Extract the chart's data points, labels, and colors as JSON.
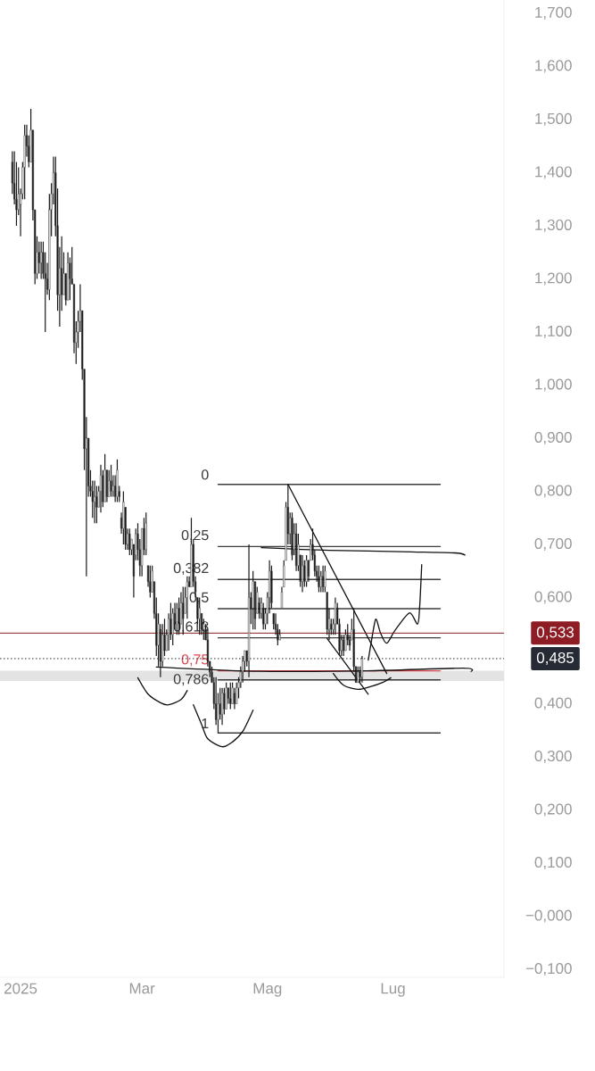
{
  "chart_data": {
    "type": "candlestick",
    "xlim": [
      "2024-12-22",
      "2025-08-24"
    ],
    "ylim": [
      -0.115,
      1.725
    ],
    "xticks": [
      {
        "value": "2025-01-01",
        "label": "2025"
      },
      {
        "value": "2025-03-01",
        "label": "Mar"
      },
      {
        "value": "2025-05-01",
        "label": "Mag"
      },
      {
        "value": "2025-07-01",
        "label": "Lug"
      }
    ],
    "yticks": [
      {
        "value": -0.1,
        "label": "−0,100"
      },
      {
        "value": 0,
        "label": "−0,000"
      },
      {
        "value": 0.1,
        "label": "0,100"
      },
      {
        "value": 0.2,
        "label": "0,200"
      },
      {
        "value": 0.3,
        "label": "0,300"
      },
      {
        "value": 0.4,
        "label": "0,400"
      },
      {
        "value": 0.6,
        "label": "0,600"
      },
      {
        "value": 0.7,
        "label": "0,700"
      },
      {
        "value": 0.8,
        "label": "0,800"
      },
      {
        "value": 0.9,
        "label": "0,900"
      },
      {
        "value": 1.0,
        "label": "1,000"
      },
      {
        "value": 1.1,
        "label": "1,100"
      },
      {
        "value": 1.2,
        "label": "1,200"
      },
      {
        "value": 1.3,
        "label": "1,300"
      },
      {
        "value": 1.4,
        "label": "1,400"
      },
      {
        "value": 1.5,
        "label": "1,500"
      },
      {
        "value": 1.6,
        "label": "1,600"
      },
      {
        "value": 1.7,
        "label": "1,700"
      }
    ],
    "bands": [
      {
        "axis": "y",
        "from": 0.443,
        "to": 0.462,
        "color": "#e3e3e3"
      }
    ],
    "ref_lines": [
      {
        "axis": "y",
        "value": 0.533,
        "label": "0,533",
        "color": "#8e1c24"
      },
      {
        "axis": "y",
        "value": 0.485,
        "label": "0,485",
        "color": "#262a35",
        "line_style": "dotted"
      }
    ],
    "color": "#1a1a1a",
    "x": [
      "2024-12-28",
      "2024-12-29",
      "2024-12-30",
      "2024-12-31",
      "2025-01-01",
      "2025-01-02",
      "2025-01-03",
      "2025-01-04",
      "2025-01-05",
      "2025-01-06",
      "2025-01-07",
      "2025-01-08",
      "2025-01-09",
      "2025-01-10",
      "2025-01-11",
      "2025-01-12",
      "2025-01-13",
      "2025-01-14",
      "2025-01-15",
      "2025-01-16",
      "2025-01-17",
      "2025-01-18",
      "2025-01-19",
      "2025-01-20",
      "2025-01-21",
      "2025-01-22",
      "2025-01-23",
      "2025-01-24",
      "2025-01-25",
      "2025-01-26",
      "2025-01-27",
      "2025-01-28",
      "2025-01-29",
      "2025-01-30",
      "2025-01-31",
      "2025-02-01",
      "2025-02-02",
      "2025-02-03",
      "2025-02-04",
      "2025-02-05",
      "2025-02-06",
      "2025-02-07",
      "2025-02-08",
      "2025-02-09",
      "2025-02-10",
      "2025-02-11",
      "2025-02-12",
      "2025-02-13",
      "2025-02-14",
      "2025-02-15",
      "2025-02-16",
      "2025-02-17",
      "2025-02-18",
      "2025-02-19",
      "2025-02-20",
      "2025-02-21",
      "2025-02-22",
      "2025-02-23",
      "2025-02-24",
      "2025-02-25",
      "2025-02-26",
      "2025-02-27",
      "2025-02-28",
      "2025-03-01",
      "2025-03-02",
      "2025-03-03",
      "2025-03-04",
      "2025-03-05",
      "2025-03-06",
      "2025-03-07",
      "2025-03-08",
      "2025-03-09",
      "2025-03-10",
      "2025-03-11",
      "2025-03-12",
      "2025-03-13",
      "2025-03-14",
      "2025-03-15",
      "2025-03-16",
      "2025-03-17",
      "2025-03-18",
      "2025-03-19",
      "2025-03-20",
      "2025-03-21",
      "2025-03-22",
      "2025-03-23",
      "2025-03-24",
      "2025-03-25",
      "2025-03-26",
      "2025-03-27",
      "2025-03-28",
      "2025-03-29",
      "2025-03-30",
      "2025-03-31",
      "2025-04-01",
      "2025-04-02",
      "2025-04-03",
      "2025-04-04",
      "2025-04-05",
      "2025-04-06",
      "2025-04-07",
      "2025-04-08",
      "2025-04-09",
      "2025-04-10",
      "2025-04-11",
      "2025-04-12",
      "2025-04-13",
      "2025-04-14",
      "2025-04-15",
      "2025-04-16",
      "2025-04-17",
      "2025-04-18",
      "2025-04-19",
      "2025-04-20",
      "2025-04-21",
      "2025-04-22",
      "2025-04-23",
      "2025-04-24",
      "2025-04-25",
      "2025-04-26",
      "2025-04-27",
      "2025-04-28",
      "2025-04-29",
      "2025-04-30",
      "2025-05-01",
      "2025-05-02",
      "2025-05-03",
      "2025-05-04",
      "2025-05-05",
      "2025-05-06",
      "2025-05-07",
      "2025-05-08",
      "2025-05-09",
      "2025-05-10",
      "2025-05-11",
      "2025-05-12",
      "2025-05-13",
      "2025-05-14",
      "2025-05-15",
      "2025-05-16",
      "2025-05-17",
      "2025-05-18",
      "2025-05-19",
      "2025-05-20",
      "2025-05-21",
      "2025-05-22",
      "2025-05-23",
      "2025-05-24",
      "2025-05-25",
      "2025-05-26",
      "2025-05-27",
      "2025-05-28",
      "2025-05-29",
      "2025-05-30",
      "2025-05-31",
      "2025-06-01",
      "2025-06-02",
      "2025-06-03",
      "2025-06-04",
      "2025-06-05",
      "2025-06-06",
      "2025-06-07",
      "2025-06-08",
      "2025-06-09",
      "2025-06-10",
      "2025-06-11",
      "2025-06-12",
      "2025-06-13",
      "2025-06-14",
      "2025-06-15",
      "2025-06-16"
    ],
    "ohlc": [
      [
        1.42,
        1.44,
        1.36,
        1.38
      ],
      [
        1.38,
        1.44,
        1.34,
        1.35
      ],
      [
        1.35,
        1.42,
        1.3,
        1.33
      ],
      [
        1.33,
        1.41,
        1.32,
        1.36
      ],
      [
        1.34,
        1.37,
        1.28,
        1.36
      ],
      [
        1.36,
        1.42,
        1.35,
        1.41
      ],
      [
        1.41,
        1.49,
        1.35,
        1.47
      ],
      [
        1.47,
        1.49,
        1.43,
        1.45
      ],
      [
        1.45,
        1.47,
        1.41,
        1.42
      ],
      [
        1.42,
        1.52,
        1.42,
        1.48
      ],
      [
        1.48,
        1.48,
        1.31,
        1.33
      ],
      [
        1.33,
        1.33,
        1.19,
        1.21
      ],
      [
        1.21,
        1.28,
        1.2,
        1.25
      ],
      [
        1.25,
        1.27,
        1.21,
        1.23
      ],
      [
        1.23,
        1.27,
        1.2,
        1.25
      ],
      [
        1.25,
        1.27,
        1.2,
        1.21
      ],
      [
        1.21,
        1.25,
        1.1,
        1.2
      ],
      [
        1.2,
        1.23,
        1.17,
        1.18
      ],
      [
        1.18,
        1.36,
        1.16,
        1.33
      ],
      [
        1.33,
        1.38,
        1.28,
        1.36
      ],
      [
        1.36,
        1.43,
        1.34,
        1.4
      ],
      [
        1.4,
        1.43,
        1.28,
        1.3
      ],
      [
        1.3,
        1.37,
        1.14,
        1.17
      ],
      [
        1.17,
        1.26,
        1.11,
        1.22
      ],
      [
        1.22,
        1.28,
        1.14,
        1.17
      ],
      [
        1.17,
        1.25,
        1.17,
        1.21
      ],
      [
        1.21,
        1.21,
        1.15,
        1.16
      ],
      [
        1.16,
        1.25,
        1.16,
        1.23
      ],
      [
        1.23,
        1.24,
        1.16,
        1.2
      ],
      [
        1.2,
        1.26,
        1.19,
        1.19
      ],
      [
        1.19,
        1.19,
        1.06,
        1.08
      ],
      [
        1.08,
        1.12,
        1.04,
        1.1
      ],
      [
        1.1,
        1.14,
        1.07,
        1.12
      ],
      [
        1.12,
        1.19,
        1.1,
        1.14
      ],
      [
        1.14,
        1.14,
        1.01,
        1.03
      ],
      [
        1.03,
        1.03,
        0.84,
        0.88
      ],
      [
        0.88,
        0.94,
        0.64,
        0.9
      ],
      [
        0.9,
        0.9,
        0.79,
        0.81
      ],
      [
        0.81,
        0.84,
        0.79,
        0.8
      ],
      [
        0.8,
        0.82,
        0.75,
        0.78
      ],
      [
        0.78,
        0.82,
        0.74,
        0.79
      ],
      [
        0.79,
        0.81,
        0.74,
        0.77
      ],
      [
        0.77,
        0.81,
        0.77,
        0.8
      ],
      [
        0.8,
        0.85,
        0.76,
        0.83
      ],
      [
        0.83,
        0.84,
        0.77,
        0.78
      ],
      [
        0.78,
        0.87,
        0.78,
        0.84
      ],
      [
        0.84,
        0.84,
        0.78,
        0.79
      ],
      [
        0.79,
        0.84,
        0.79,
        0.82
      ],
      [
        0.82,
        0.85,
        0.79,
        0.8
      ],
      [
        0.8,
        0.83,
        0.79,
        0.81
      ],
      [
        0.81,
        0.83,
        0.78,
        0.79
      ],
      [
        0.79,
        0.86,
        0.78,
        0.84
      ],
      [
        0.8,
        0.81,
        0.78,
        0.79
      ],
      [
        0.75,
        0.76,
        0.72,
        0.73
      ],
      [
        0.73,
        0.8,
        0.7,
        0.78
      ],
      [
        0.77,
        0.77,
        0.69,
        0.7
      ],
      [
        0.7,
        0.73,
        0.69,
        0.72
      ],
      [
        0.72,
        0.73,
        0.68,
        0.69
      ],
      [
        0.69,
        0.71,
        0.68,
        0.71
      ],
      [
        0.7,
        0.7,
        0.6,
        0.64
      ],
      [
        0.68,
        0.73,
        0.67,
        0.72
      ],
      [
        0.72,
        0.74,
        0.67,
        0.69
      ],
      [
        0.69,
        0.71,
        0.64,
        0.66
      ],
      [
        0.66,
        0.73,
        0.64,
        0.73
      ],
      [
        0.73,
        0.75,
        0.68,
        0.69
      ],
      [
        0.69,
        0.76,
        0.68,
        0.74
      ],
      [
        0.66,
        0.66,
        0.62,
        0.63
      ],
      [
        0.63,
        0.66,
        0.6,
        0.61
      ],
      [
        0.61,
        0.66,
        0.61,
        0.65
      ],
      [
        0.63,
        0.63,
        0.56,
        0.57
      ],
      [
        0.57,
        0.6,
        0.49,
        0.51
      ],
      [
        0.51,
        0.57,
        0.47,
        0.55
      ],
      [
        0.54,
        0.55,
        0.45,
        0.48
      ],
      [
        0.48,
        0.55,
        0.47,
        0.53
      ],
      [
        0.53,
        0.56,
        0.49,
        0.5
      ],
      [
        0.5,
        0.54,
        0.5,
        0.53
      ],
      [
        0.53,
        0.57,
        0.5,
        0.56
      ],
      [
        0.56,
        0.59,
        0.52,
        0.53
      ],
      [
        0.53,
        0.58,
        0.51,
        0.57
      ],
      [
        0.57,
        0.59,
        0.54,
        0.55
      ],
      [
        0.55,
        0.59,
        0.53,
        0.58
      ],
      [
        0.58,
        0.6,
        0.53,
        0.55
      ],
      [
        0.55,
        0.61,
        0.55,
        0.59
      ],
      [
        0.59,
        0.62,
        0.53,
        0.56
      ],
      [
        0.57,
        0.62,
        0.57,
        0.6
      ],
      [
        0.6,
        0.64,
        0.56,
        0.63
      ],
      [
        0.63,
        0.64,
        0.62,
        0.62
      ],
      [
        0.62,
        0.75,
        0.62,
        0.7
      ],
      [
        0.7,
        0.71,
        0.62,
        0.63
      ],
      [
        0.63,
        0.64,
        0.6,
        0.61
      ],
      [
        0.6,
        0.6,
        0.55,
        0.56
      ],
      [
        0.56,
        0.6,
        0.53,
        0.58
      ],
      [
        0.57,
        0.57,
        0.53,
        0.54
      ],
      [
        0.54,
        0.56,
        0.52,
        0.55
      ],
      [
        0.54,
        0.55,
        0.52,
        0.52
      ],
      [
        0.52,
        0.54,
        0.47,
        0.48
      ],
      [
        0.48,
        0.48,
        0.45,
        0.46
      ],
      [
        0.46,
        0.47,
        0.44,
        0.44
      ],
      [
        0.44,
        0.45,
        0.39,
        0.4
      ],
      [
        0.4,
        0.45,
        0.36,
        0.37
      ],
      [
        0.37,
        0.42,
        0.345,
        0.4
      ],
      [
        0.4,
        0.43,
        0.37,
        0.38
      ],
      [
        0.38,
        0.43,
        0.36,
        0.42
      ],
      [
        0.42,
        0.43,
        0.38,
        0.39
      ],
      [
        0.39,
        0.44,
        0.39,
        0.43
      ],
      [
        0.43,
        0.43,
        0.4,
        0.41
      ],
      [
        0.41,
        0.44,
        0.39,
        0.4
      ],
      [
        0.4,
        0.44,
        0.4,
        0.43
      ],
      [
        0.42,
        0.43,
        0.39,
        0.4
      ],
      [
        0.4,
        0.44,
        0.4,
        0.43
      ],
      [
        0.43,
        0.45,
        0.41,
        0.44
      ],
      [
        0.44,
        0.47,
        0.43,
        0.46
      ],
      [
        0.46,
        0.49,
        0.44,
        0.48
      ],
      [
        0.48,
        0.5,
        0.46,
        0.5
      ],
      [
        0.5,
        0.5,
        0.47,
        0.48
      ],
      [
        0.48,
        0.7,
        0.45,
        0.6
      ],
      [
        0.6,
        0.61,
        0.55,
        0.58
      ],
      [
        0.58,
        0.65,
        0.54,
        0.63
      ],
      [
        0.63,
        0.63,
        0.54,
        0.56
      ],
      [
        0.57,
        0.62,
        0.57,
        0.61
      ],
      [
        0.59,
        0.6,
        0.56,
        0.57
      ],
      [
        0.57,
        0.6,
        0.56,
        0.59
      ],
      [
        0.58,
        0.59,
        0.54,
        0.55
      ],
      [
        0.55,
        0.58,
        0.54,
        0.57
      ],
      [
        0.57,
        0.61,
        0.55,
        0.6
      ],
      [
        0.6,
        0.67,
        0.57,
        0.65
      ],
      [
        0.65,
        0.66,
        0.58,
        0.59
      ],
      [
        0.57,
        0.57,
        0.54,
        0.55
      ],
      [
        0.55,
        0.57,
        0.53,
        0.54
      ],
      [
        0.54,
        0.55,
        0.51,
        0.52
      ],
      [
        0.52,
        0.54,
        0.52,
        0.53
      ],
      [
        0.58,
        0.62,
        0.58,
        0.61
      ],
      [
        0.62,
        0.67,
        0.62,
        0.66
      ],
      [
        0.67,
        0.78,
        0.67,
        0.77
      ],
      [
        0.77,
        0.813,
        0.7,
        0.72
      ],
      [
        0.72,
        0.76,
        0.7,
        0.75
      ],
      [
        0.75,
        0.76,
        0.67,
        0.68
      ],
      [
        0.69,
        0.74,
        0.68,
        0.72
      ],
      [
        0.72,
        0.74,
        0.65,
        0.66
      ],
      [
        0.66,
        0.72,
        0.65,
        0.7
      ],
      [
        0.68,
        0.68,
        0.62,
        0.63
      ],
      [
        0.63,
        0.68,
        0.61,
        0.66
      ],
      [
        0.66,
        0.67,
        0.62,
        0.63
      ],
      [
        0.63,
        0.68,
        0.62,
        0.67
      ],
      [
        0.67,
        0.67,
        0.63,
        0.64
      ],
      [
        0.67,
        0.71,
        0.67,
        0.7
      ],
      [
        0.7,
        0.73,
        0.67,
        0.68
      ],
      [
        0.68,
        0.69,
        0.64,
        0.65
      ],
      [
        0.65,
        0.66,
        0.63,
        0.64
      ],
      [
        0.64,
        0.66,
        0.61,
        0.62
      ],
      [
        0.62,
        0.65,
        0.61,
        0.64
      ],
      [
        0.64,
        0.66,
        0.61,
        0.62
      ],
      [
        0.62,
        0.66,
        0.61,
        0.65
      ],
      [
        0.61,
        0.61,
        0.53,
        0.54
      ],
      [
        0.54,
        0.58,
        0.52,
        0.56
      ],
      [
        0.55,
        0.56,
        0.53,
        0.54
      ],
      [
        0.54,
        0.56,
        0.53,
        0.55
      ],
      [
        0.55,
        0.6,
        0.53,
        0.59
      ],
      [
        0.58,
        0.59,
        0.55,
        0.55
      ],
      [
        0.55,
        0.56,
        0.49,
        0.5
      ],
      [
        0.5,
        0.53,
        0.49,
        0.52
      ],
      [
        0.52,
        0.53,
        0.49,
        0.5
      ],
      [
        0.5,
        0.54,
        0.5,
        0.53
      ],
      [
        0.53,
        0.55,
        0.51,
        0.52
      ],
      [
        0.52,
        0.53,
        0.5,
        0.51
      ],
      [
        0.52,
        0.56,
        0.52,
        0.54
      ],
      [
        0.54,
        0.58,
        0.46,
        0.47
      ],
      [
        0.47,
        0.47,
        0.44,
        0.44
      ],
      [
        0.44,
        0.47,
        0.44,
        0.46
      ],
      [
        0.46,
        0.47,
        0.44,
        0.45
      ],
      [
        0.45,
        0.49,
        0.44,
        0.485
      ]
    ],
    "series": [
      {
        "type": "line",
        "name": "0",
        "color": "#3c3c3c",
        "x": [
          "2025-04-07",
          "2025-07-24"
        ],
        "values": [
          0.813,
          0.813
        ]
      },
      {
        "type": "line",
        "name": "0,25",
        "color": "#3c3c3c",
        "x": [
          "2025-04-07",
          "2025-07-24"
        ],
        "values": [
          0.696,
          0.696
        ]
      },
      {
        "type": "line",
        "name": "0,382",
        "color": "#3c3c3c",
        "x": [
          "2025-04-07",
          "2025-07-24"
        ],
        "values": [
          0.634,
          0.634
        ]
      },
      {
        "type": "line",
        "name": "0,5",
        "color": "#3c3c3c",
        "x": [
          "2025-04-07",
          "2025-07-24"
        ],
        "values": [
          0.579,
          0.579
        ]
      },
      {
        "type": "line",
        "name": "0,618",
        "color": "#3c3c3c",
        "x": [
          "2025-04-07",
          "2025-07-24"
        ],
        "values": [
          0.524,
          0.524
        ]
      },
      {
        "type": "line",
        "name": "0,75",
        "color": "#e0454f",
        "x": [
          "2025-04-07",
          "2025-07-24"
        ],
        "values": [
          0.462,
          0.462
        ]
      },
      {
        "type": "line",
        "name": "0,786",
        "color": "#3c3c3c",
        "x": [
          "2025-04-07",
          "2025-07-24"
        ],
        "values": [
          0.445,
          0.445
        ]
      },
      {
        "type": "line",
        "name": "1",
        "color": "#3c3c3c",
        "x": [
          "2025-04-07",
          "2025-07-24"
        ],
        "values": [
          0.345,
          0.345
        ]
      },
      {
        "type": "line",
        "color": "#111111",
        "x": [
          "2025-05-11",
          "2025-06-28"
        ],
        "values": [
          0.813,
          0.457
        ]
      },
      {
        "type": "line",
        "color": "#111111",
        "x": [
          "2025-05-30",
          "2025-06-19"
        ],
        "values": [
          0.523,
          0.418
        ]
      },
      {
        "type": "line",
        "color": "#111111",
        "x": [
          "2025-06-02",
          "2025-06-07",
          "2025-06-14",
          "2025-06-20",
          "2025-06-26",
          "2025-06-30"
        ],
        "values": [
          0.457,
          0.435,
          0.427,
          0.432,
          0.44,
          0.449
        ]
      },
      {
        "type": "line",
        "color": "#111111",
        "x": [
          "2025-06-19",
          "2025-06-22",
          "2025-06-23",
          "2025-06-25",
          "2025-06-28",
          "2025-07-02",
          "2025-07-09",
          "2025-07-13",
          "2025-07-14",
          "2025-07-15"
        ],
        "values": [
          0.482,
          0.55,
          0.558,
          0.533,
          0.514,
          0.538,
          0.571,
          0.55,
          0.583,
          0.662
        ]
      },
      {
        "type": "line",
        "color": "#111111",
        "x": [
          "2025-04-28",
          "2025-05-31",
          "2025-07-10",
          "2025-07-31",
          "2025-08-05"
        ],
        "values": [
          0.694,
          0.689,
          0.686,
          0.684,
          0.68
        ]
      },
      {
        "type": "line",
        "color": "#111111",
        "x": [
          "2025-03-08",
          "2025-04-27",
          "2025-06-18",
          "2025-08-04",
          "2025-08-08"
        ],
        "values": [
          0.469,
          0.461,
          0.462,
          0.467,
          0.461
        ]
      },
      {
        "type": "line",
        "color": "#111111",
        "x": [
          "2025-02-27",
          "2025-03-04",
          "2025-03-10",
          "2025-03-14",
          "2025-03-20",
          "2025-03-23"
        ],
        "values": [
          0.449,
          0.418,
          0.402,
          0.398,
          0.408,
          0.425
        ]
      },
      {
        "type": "line",
        "color": "#111111",
        "x": [
          "2025-03-26",
          "2025-03-30",
          "2025-04-02",
          "2025-04-09",
          "2025-04-14",
          "2025-04-19",
          "2025-04-24"
        ],
        "values": [
          0.398,
          0.361,
          0.334,
          0.319,
          0.328,
          0.348,
          0.388
        ]
      }
    ]
  }
}
